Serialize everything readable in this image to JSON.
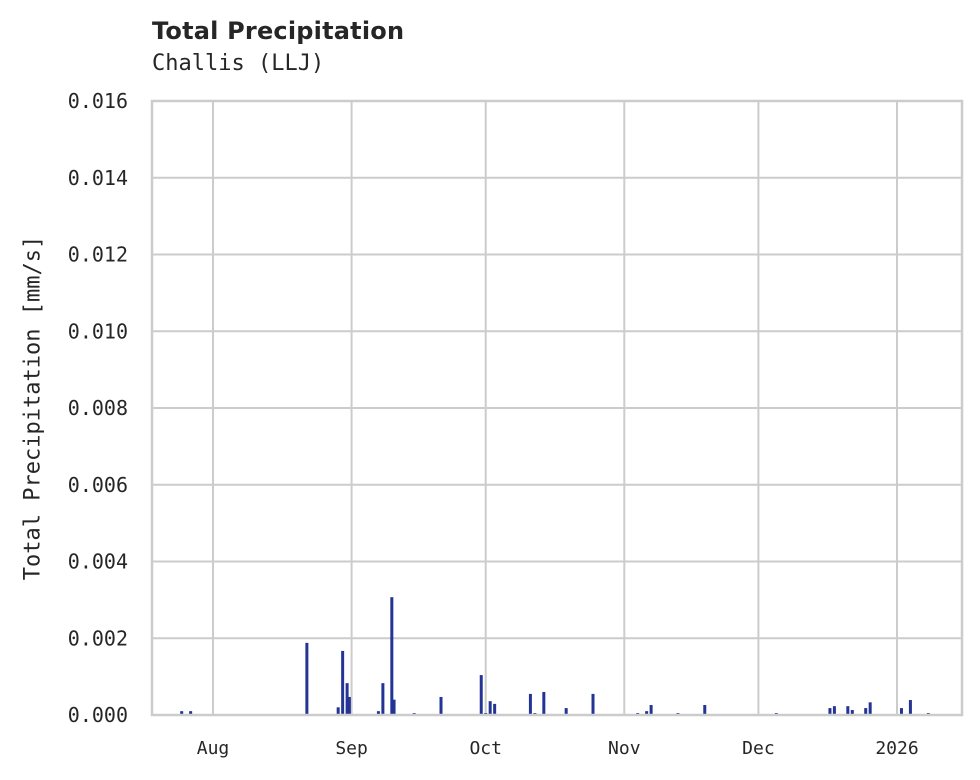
{
  "chart_data": {
    "type": "bar",
    "title": "Total Precipitation",
    "subtitle": "Challis (LLJ)",
    "xlabel": "",
    "ylabel": "Total Precipitation [mm/s]",
    "ylim": [
      0,
      0.016
    ],
    "yticks": [
      "0.000",
      "0.002",
      "0.004",
      "0.006",
      "0.008",
      "0.010",
      "0.012",
      "0.014",
      "0.016"
    ],
    "xticks": [
      "Aug",
      "Sep",
      "Oct",
      "Nov",
      "Dec",
      "2026"
    ],
    "grid": true,
    "legend": null,
    "bar_color": "#233494",
    "x_axis_note": "dates, roughly mid-Jul 2025 to mid-Jan 2026",
    "series": [
      {
        "name": "Total Precipitation",
        "points": [
          {
            "x": "2025-07-25",
            "y": 0.0001
          },
          {
            "x": "2025-07-27",
            "y": 0.0001
          },
          {
            "x": "2025-08-22",
            "y": 0.00188
          },
          {
            "x": "2025-08-29",
            "y": 0.0002
          },
          {
            "x": "2025-08-30",
            "y": 0.00167
          },
          {
            "x": "2025-08-31",
            "y": 0.00083
          },
          {
            "x": "2025-08-31T12",
            "y": 0.00047
          },
          {
            "x": "2025-09-07",
            "y": 0.0001
          },
          {
            "x": "2025-09-08",
            "y": 0.00083
          },
          {
            "x": "2025-09-10",
            "y": 0.00307
          },
          {
            "x": "2025-09-10T12",
            "y": 0.0004
          },
          {
            "x": "2025-09-15",
            "y": 5e-05
          },
          {
            "x": "2025-09-21",
            "y": 0.00047
          },
          {
            "x": "2025-09-30",
            "y": 0.00104
          },
          {
            "x": "2025-10-01",
            "y": 5e-05
          },
          {
            "x": "2025-10-02",
            "y": 0.00036
          },
          {
            "x": "2025-10-03",
            "y": 0.00029
          },
          {
            "x": "2025-10-11",
            "y": 0.00055
          },
          {
            "x": "2025-10-12",
            "y": 5e-05
          },
          {
            "x": "2025-10-14",
            "y": 0.0006
          },
          {
            "x": "2025-10-19",
            "y": 0.00018
          },
          {
            "x": "2025-10-25",
            "y": 0.00055
          },
          {
            "x": "2025-11-04",
            "y": 5e-05
          },
          {
            "x": "2025-11-06",
            "y": 0.0001
          },
          {
            "x": "2025-11-07",
            "y": 0.00026
          },
          {
            "x": "2025-11-13",
            "y": 5e-05
          },
          {
            "x": "2025-11-19",
            "y": 0.00026
          },
          {
            "x": "2025-12-05",
            "y": 5e-05
          },
          {
            "x": "2025-12-17",
            "y": 0.00018
          },
          {
            "x": "2025-12-18",
            "y": 0.00023
          },
          {
            "x": "2025-12-21",
            "y": 0.00023
          },
          {
            "x": "2025-12-22",
            "y": 0.00013
          },
          {
            "x": "2025-12-25",
            "y": 0.00018
          },
          {
            "x": "2025-12-26",
            "y": 0.00033
          },
          {
            "x": "2026-01-02",
            "y": 0.00018
          },
          {
            "x": "2026-01-04",
            "y": 0.00039
          },
          {
            "x": "2026-01-08",
            "y": 5e-05
          }
        ]
      }
    ]
  }
}
